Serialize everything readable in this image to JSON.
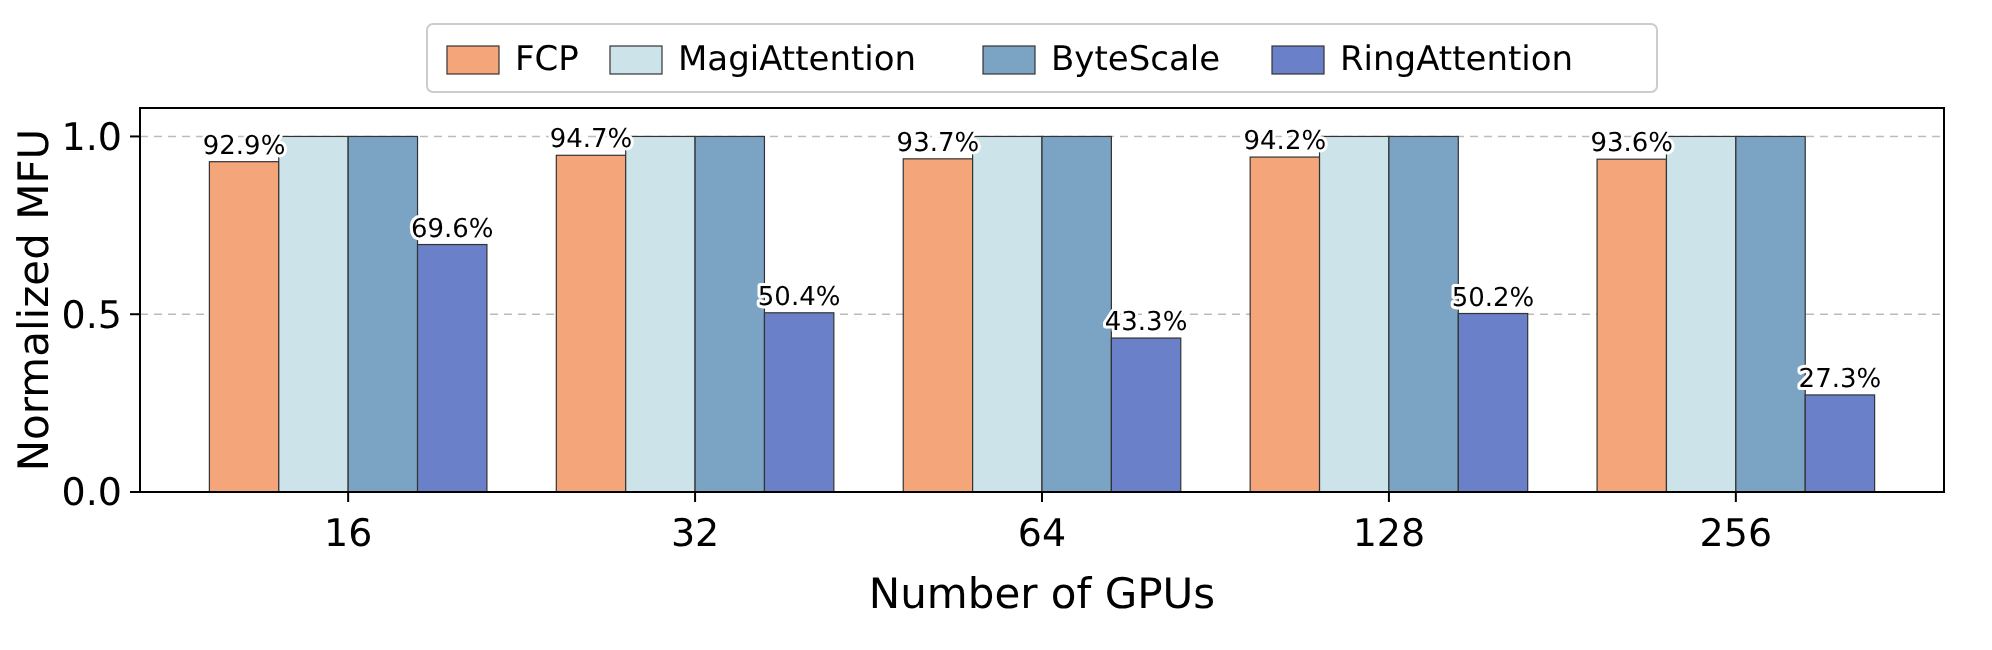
{
  "chart_data": {
    "type": "bar",
    "xlabel": "Number of GPUs",
    "ylabel": "Normalized MFU",
    "categories": [
      "16",
      "32",
      "64",
      "128",
      "256"
    ],
    "series": [
      {
        "name": "FCP",
        "color": "#f4a57a",
        "values": [
          0.929,
          0.947,
          0.937,
          0.942,
          0.936
        ],
        "value_labels": [
          "92.9%",
          "94.7%",
          "93.7%",
          "94.2%",
          "93.6%"
        ]
      },
      {
        "name": "MagiAttention",
        "color": "#cde3ea",
        "values": [
          1.0,
          1.0,
          1.0,
          1.0,
          1.0
        ]
      },
      {
        "name": "ByteScale",
        "color": "#7aa3c4",
        "values": [
          1.0,
          1.0,
          1.0,
          1.0,
          1.0
        ]
      },
      {
        "name": "RingAttention",
        "color": "#6a80c9",
        "values": [
          0.696,
          0.504,
          0.433,
          0.502,
          0.273
        ],
        "value_labels": [
          "69.6%",
          "50.4%",
          "43.3%",
          "50.2%",
          "27.3%"
        ]
      }
    ],
    "ylim": [
      0,
      1.08
    ],
    "yticks": [
      {
        "value": 0,
        "label": "0.0"
      },
      {
        "value": 0.5,
        "label": "0.5"
      },
      {
        "value": 1,
        "label": "1.0"
      }
    ],
    "grid": "y",
    "legend": "top"
  }
}
